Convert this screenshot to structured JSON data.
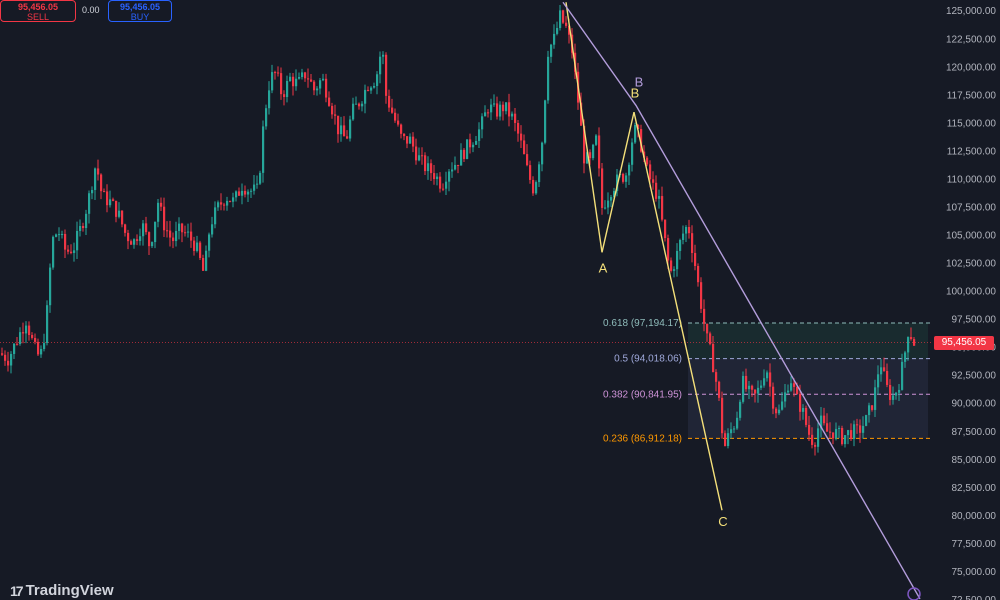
{
  "trade": {
    "sell_price": "95,456.05",
    "sell_label": "SELL",
    "spread": "0.00",
    "buy_price": "95,456.05",
    "buy_label": "BUY"
  },
  "brand": {
    "logo_mark": "17",
    "name": "TradingView"
  },
  "last_price_label": "95,456.05",
  "colors": {
    "up": "#26a69a",
    "down": "#f23645",
    "wave": "#f4e07a",
    "trend": "#b39ddb"
  },
  "chart_data": {
    "type": "candlestick",
    "y_axis": {
      "min": 72500,
      "max": 126000,
      "tick_labels": [
        "125,000.00",
        "122,500.00",
        "120,000.00",
        "117,500.00",
        "115,000.00",
        "112,500.00",
        "110,000.00",
        "107,500.00",
        "105,000.00",
        "102,500.00",
        "100,000.00",
        "97,500.00",
        "95,000.00",
        "92,500.00",
        "90,000.00",
        "87,500.00",
        "85,000.00",
        "82,500.00",
        "80,000.00",
        "77,500.00",
        "75,000.00",
        "72,500.00"
      ],
      "tick_values": [
        125000,
        122500,
        120000,
        117500,
        115000,
        112500,
        110000,
        107500,
        105000,
        102500,
        100000,
        97500,
        95000,
        92500,
        90000,
        87500,
        85000,
        82500,
        80000,
        77500,
        75000,
        72500
      ]
    },
    "price_path": [
      [
        0,
        94500
      ],
      [
        8,
        94000
      ],
      [
        16,
        95500
      ],
      [
        26,
        97500
      ],
      [
        34,
        95000
      ],
      [
        40,
        94000
      ],
      [
        46,
        97000
      ],
      [
        52,
        104500
      ],
      [
        58,
        105500
      ],
      [
        66,
        103500
      ],
      [
        74,
        104000
      ],
      [
        82,
        106000
      ],
      [
        88,
        108000
      ],
      [
        96,
        111500
      ],
      [
        102,
        108500
      ],
      [
        110,
        108000
      ],
      [
        118,
        107000
      ],
      [
        126,
        105000
      ],
      [
        134,
        104500
      ],
      [
        142,
        106000
      ],
      [
        150,
        104000
      ],
      [
        158,
        108000
      ],
      [
        164,
        106000
      ],
      [
        172,
        104500
      ],
      [
        180,
        105500
      ],
      [
        188,
        105000
      ],
      [
        196,
        104000
      ],
      [
        204,
        101500
      ],
      [
        210,
        106000
      ],
      [
        218,
        107500
      ],
      [
        226,
        108500
      ],
      [
        234,
        108000
      ],
      [
        242,
        109500
      ],
      [
        250,
        109000
      ],
      [
        258,
        109000
      ],
      [
        264,
        115500
      ],
      [
        270,
        119000
      ],
      [
        276,
        119500
      ],
      [
        282,
        117500
      ],
      [
        290,
        119000
      ],
      [
        298,
        118500
      ],
      [
        306,
        119500
      ],
      [
        314,
        118000
      ],
      [
        322,
        119000
      ],
      [
        330,
        117000
      ],
      [
        338,
        114500
      ],
      [
        346,
        113500
      ],
      [
        352,
        116000
      ],
      [
        360,
        117000
      ],
      [
        368,
        118500
      ],
      [
        376,
        119000
      ],
      [
        382,
        122000
      ],
      [
        386,
        117500
      ],
      [
        394,
        115500
      ],
      [
        402,
        113500
      ],
      [
        410,
        113500
      ],
      [
        418,
        112000
      ],
      [
        426,
        111000
      ],
      [
        434,
        110500
      ],
      [
        442,
        109500
      ],
      [
        448,
        111000
      ],
      [
        456,
        111500
      ],
      [
        464,
        112500
      ],
      [
        472,
        113500
      ],
      [
        480,
        114500
      ],
      [
        488,
        116500
      ],
      [
        496,
        116000
      ],
      [
        504,
        116500
      ],
      [
        512,
        115500
      ],
      [
        520,
        113500
      ],
      [
        528,
        110500
      ],
      [
        534,
        109000
      ],
      [
        542,
        113500
      ],
      [
        548,
        121500
      ],
      [
        554,
        122500
      ],
      [
        560,
        124500
      ],
      [
        566,
        123500
      ],
      [
        572,
        121500
      ],
      [
        578,
        117000
      ],
      [
        584,
        112000
      ],
      [
        590,
        111500
      ],
      [
        596,
        113500
      ],
      [
        602,
        107500
      ],
      [
        610,
        109000
      ],
      [
        618,
        110000
      ],
      [
        626,
        110500
      ],
      [
        634,
        114500
      ],
      [
        640,
        113500
      ],
      [
        646,
        111000
      ],
      [
        652,
        109500
      ],
      [
        658,
        108500
      ],
      [
        664,
        105000
      ],
      [
        670,
        101500
      ],
      [
        676,
        103000
      ],
      [
        682,
        105000
      ],
      [
        688,
        106000
      ],
      [
        694,
        103000
      ],
      [
        700,
        99500
      ],
      [
        706,
        96000
      ],
      [
        712,
        94000
      ],
      [
        718,
        91000
      ],
      [
        724,
        86000
      ],
      [
        730,
        87500
      ],
      [
        736,
        88500
      ],
      [
        742,
        92000
      ],
      [
        748,
        91000
      ],
      [
        754,
        90500
      ],
      [
        760,
        91500
      ],
      [
        766,
        93500
      ],
      [
        772,
        90500
      ],
      [
        778,
        89000
      ],
      [
        784,
        90500
      ],
      [
        790,
        92500
      ],
      [
        796,
        90500
      ],
      [
        802,
        89500
      ],
      [
        808,
        87500
      ],
      [
        814,
        86500
      ],
      [
        820,
        88500
      ],
      [
        826,
        87500
      ],
      [
        834,
        87500
      ],
      [
        842,
        87000
      ],
      [
        850,
        87500
      ],
      [
        858,
        87500
      ],
      [
        866,
        88500
      ],
      [
        874,
        90500
      ],
      [
        880,
        94000
      ],
      [
        886,
        91500
      ],
      [
        892,
        90500
      ],
      [
        898,
        91500
      ],
      [
        904,
        94000
      ],
      [
        908,
        96500
      ],
      [
        912,
        96000
      ],
      [
        914,
        95456
      ]
    ],
    "last_price": 95456.05,
    "waves": [
      {
        "label": "A",
        "points": [
          [
            566,
            125800
          ],
          [
            602,
            103500
          ]
        ]
      },
      {
        "label": "B",
        "points": [
          [
            602,
            103500
          ],
          [
            634,
            116000
          ]
        ]
      },
      {
        "label": "C",
        "points": [
          [
            634,
            116000
          ],
          [
            722,
            80500
          ]
        ]
      }
    ],
    "wave_labels": [
      {
        "text": "A",
        "x": 603,
        "y": 101700,
        "color": "wave"
      },
      {
        "text": "B",
        "x": 635,
        "y": 117300,
        "color": "wave"
      },
      {
        "text": "B",
        "x": 639,
        "y": 118300,
        "color": "trend"
      },
      {
        "text": "C",
        "x": 723,
        "y": 79100,
        "color": "wave"
      }
    ],
    "trendline": [
      [
        563,
        125800
      ],
      [
        636,
        116600
      ],
      [
        920,
        72600
      ]
    ],
    "fibonacci": {
      "range": [
        700,
        960
      ],
      "levels": [
        {
          "ratio": "0.618",
          "value": 97194.17,
          "label": "0.618 (97,194.17)",
          "color": "#8fbcbb"
        },
        {
          "ratio": "0.5",
          "value": 94018.06,
          "label": "0.5 (94,018.06)",
          "color": "#9fa8da"
        },
        {
          "ratio": "0.382",
          "value": 90841.95,
          "label": "0.382 (90,841.95)",
          "color": "#ce93d8"
        },
        {
          "ratio": "0.236",
          "value": 86912.18,
          "label": "0.236 (86,912.18)",
          "color": "#ff9800"
        }
      ]
    }
  }
}
